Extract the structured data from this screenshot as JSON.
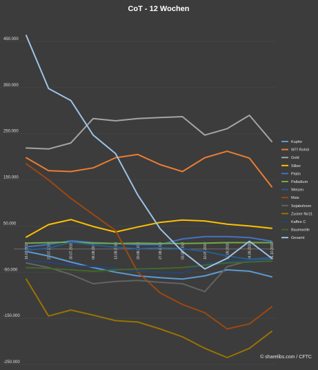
{
  "chart_data": {
    "type": "line",
    "title": "CoT - 12 Wochen",
    "credit": "© sharelibs.com / CFTC",
    "ylim": [
      -250000,
      480000
    ],
    "yticks": [
      450000,
      350000,
      250000,
      150000,
      50000,
      -50000,
      -150000,
      -250000
    ],
    "ytick_labels": [
      "450.000",
      "350.000",
      "250.000",
      "150.000",
      "50.000",
      "-50.000",
      "-150.000",
      "-250.000"
    ],
    "x": [
      "16.07.2019",
      "23.07.2019",
      "30.07.2019",
      "06.08.2019",
      "13.08.2019",
      "20.08.2019",
      "27.08.2019",
      "03.09.2019",
      "10.09.2019",
      "17.09.2019",
      "24.09.2019",
      "01.10.2019"
    ],
    "x_tick_labels": [
      "16.07.2019",
      "23.07.2019",
      "30.07.2019",
      "06.08.2019",
      "13.08.2019",
      "20.08.2019",
      "27.08.2019",
      "03.09.2019",
      "10.09.2019",
      "17.09.2019",
      "24.09.2019",
      "01.10.2019"
    ],
    "legend_position": "right",
    "series": [
      {
        "name": "Kupfer",
        "color": "#5b9bd5",
        "values": [
          -5000,
          -15000,
          -28000,
          -40000,
          -50000,
          -58000,
          -62000,
          -65000,
          -58000,
          -45000,
          -48000,
          -60000
        ]
      },
      {
        "name": "WTI Rohöl",
        "color": "#ed7d31",
        "values": [
          198000,
          170000,
          168000,
          176000,
          198000,
          205000,
          183000,
          168000,
          198000,
          212000,
          197000,
          135000
        ]
      },
      {
        "name": "Gold",
        "color": "#a5a5a5",
        "values": [
          219000,
          217000,
          230000,
          283000,
          278000,
          283000,
          285000,
          287000,
          247000,
          261000,
          290000,
          233000
        ]
      },
      {
        "name": "Silber",
        "color": "#ffc000",
        "values": [
          26000,
          53000,
          64000,
          49000,
          37000,
          48000,
          58000,
          63000,
          61000,
          54000,
          50000,
          45000
        ]
      },
      {
        "name": "Platin",
        "color": "#4472c4",
        "values": [
          5000,
          10000,
          18000,
          14000,
          12000,
          10000,
          10000,
          22000,
          27000,
          27000,
          25000,
          17000
        ]
      },
      {
        "name": "Palladium",
        "color": "#70ad47",
        "values": [
          13000,
          14000,
          15000,
          13000,
          12000,
          13000,
          12000,
          12000,
          13000,
          14000,
          14000,
          14000
        ]
      },
      {
        "name": "Weizen",
        "color": "#255e91",
        "values": [
          -2000,
          2000,
          15000,
          9000,
          4000,
          1000,
          3000,
          1000,
          -5000,
          -15000,
          -22000,
          -18000
        ]
      },
      {
        "name": "Mais",
        "color": "#9e480e",
        "values": [
          185000,
          150000,
          110000,
          75000,
          40000,
          -50000,
          -95000,
          -120000,
          -138000,
          -173000,
          -162000,
          -125000
        ]
      },
      {
        "name": "Sojabohnen",
        "color": "#636363",
        "values": [
          -30000,
          -40000,
          -55000,
          -75000,
          -70000,
          -68000,
          -72000,
          -75000,
          -92000,
          -38000,
          -25000,
          -22000
        ]
      },
      {
        "name": "Zucker No11",
        "color": "#997300",
        "values": [
          -65000,
          -145000,
          -132000,
          -143000,
          -155000,
          -158000,
          -173000,
          -190000,
          -215000,
          -235000,
          -215000,
          -178000
        ]
      },
      {
        "name": "Kaffee C",
        "color": "#264478",
        "values": [
          -25000,
          -28000,
          -35000,
          -38000,
          -42000,
          -48000,
          -50000,
          -52000,
          -32000,
          -26000,
          -25000,
          -24000
        ]
      },
      {
        "name": "Baumwolle",
        "color": "#43682b",
        "values": [
          -40000,
          -42000,
          -45000,
          -48000,
          -45000,
          -43000,
          -42000,
          -40000,
          -35000,
          -30000,
          -28000,
          -26000
        ]
      },
      {
        "name": "Gesamt",
        "color": "#9dc3e6",
        "values": [
          463000,
          348000,
          322000,
          247000,
          207000,
          117000,
          44000,
          -5000,
          -43000,
          -20000,
          17000,
          -20000
        ]
      }
    ]
  }
}
